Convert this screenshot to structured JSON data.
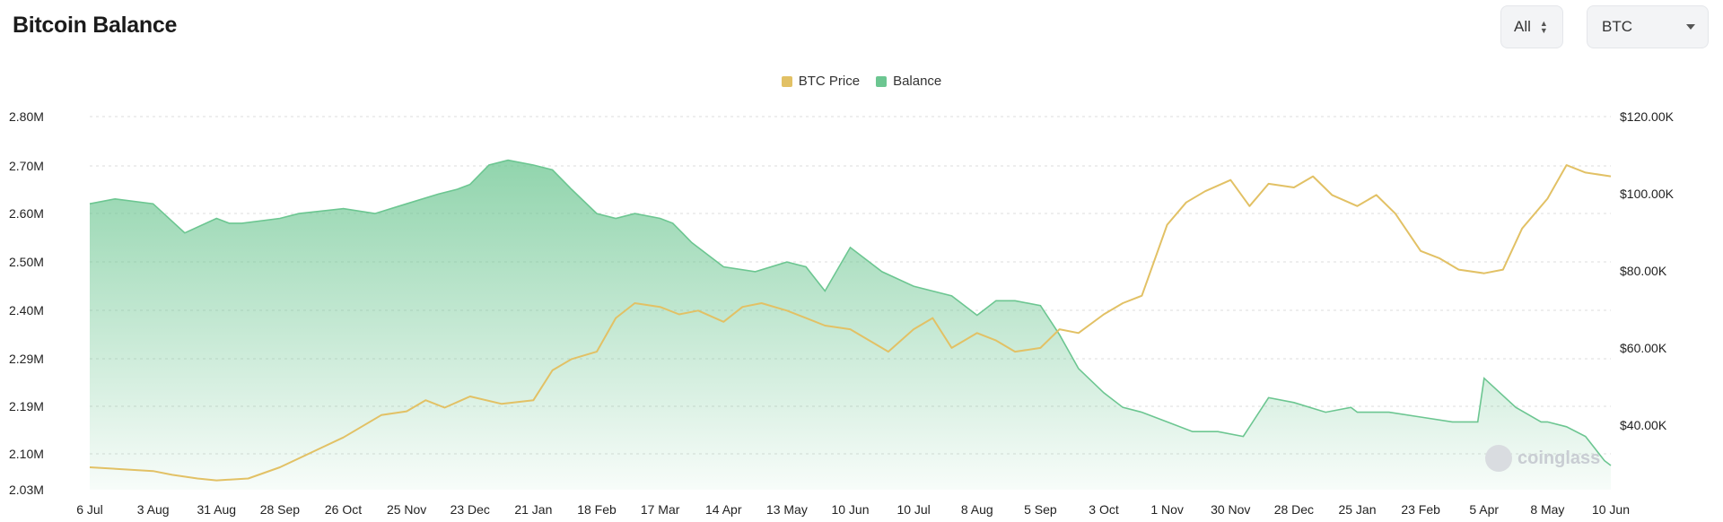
{
  "header": {
    "title": "Bitcoin Balance"
  },
  "controls": {
    "range_value": "All",
    "coin_value": "BTC"
  },
  "watermark": {
    "text": "coinglass"
  },
  "colors": {
    "price": "#e2c165",
    "balance": "#6cc691",
    "grid": "#dcdcdc"
  },
  "chart_data": {
    "type": "area",
    "legend": {
      "position": "top-center",
      "entries": [
        "BTC Price",
        "Balance"
      ]
    },
    "grid": true,
    "x_tick_labels": [
      "6 Jul",
      "3 Aug",
      "31 Aug",
      "28 Sep",
      "26 Oct",
      "25 Nov",
      "23 Dec",
      "21 Jan",
      "18 Feb",
      "17 Mar",
      "14 Apr",
      "13 May",
      "10 Jun",
      "10 Jul",
      "8 Aug",
      "5 Sep",
      "3 Oct",
      "1 Nov",
      "30 Nov",
      "28 Dec",
      "25 Jan",
      "23 Feb",
      "5 Apr",
      "8 May",
      "10 Jun"
    ],
    "y_left_ticks": [
      "2.80M",
      "2.70M",
      "2.60M",
      "2.50M",
      "2.40M",
      "2.29M",
      "2.19M",
      "2.10M",
      "2.03M"
    ],
    "y_right_ticks": [
      "$120.00K",
      "$100.00K",
      "$80.00K",
      "$60.00K",
      "$40.00K"
    ],
    "y_left_range": [
      2.03,
      2.8
    ],
    "y_right_range": [
      20,
      120
    ],
    "series": [
      {
        "name": "Balance",
        "axis": "left",
        "unit": "M BTC",
        "x": [
          0,
          0.4,
          1,
          1.5,
          2,
          2.2,
          2.4,
          3,
          3.3,
          4,
          4.5,
          5,
          5.5,
          5.8,
          6,
          6.3,
          6.6,
          7,
          7.3,
          7.6,
          8,
          8.3,
          8.6,
          9,
          9.2,
          9.5,
          10,
          10.5,
          11,
          11.3,
          11.6,
          12,
          12.5,
          13,
          13.3,
          13.6,
          14,
          14.3,
          14.6,
          15,
          15.3,
          15.6,
          16,
          16.3,
          16.6,
          17,
          17.4,
          17.8,
          18.2,
          18.6,
          19,
          19.5,
          19.9,
          20,
          20.5,
          21,
          21.5,
          21.9,
          22,
          22.5,
          22.9,
          23,
          23.3,
          23.6,
          23.9,
          24
        ],
        "values": [
          2.62,
          2.63,
          2.62,
          2.56,
          2.59,
          2.58,
          2.58,
          2.59,
          2.6,
          2.61,
          2.6,
          2.62,
          2.64,
          2.65,
          2.66,
          2.7,
          2.71,
          2.7,
          2.69,
          2.65,
          2.6,
          2.59,
          2.6,
          2.59,
          2.58,
          2.54,
          2.49,
          2.48,
          2.5,
          2.49,
          2.44,
          2.53,
          2.48,
          2.45,
          2.44,
          2.43,
          2.39,
          2.42,
          2.42,
          2.41,
          2.35,
          2.28,
          2.23,
          2.2,
          2.19,
          2.17,
          2.15,
          2.15,
          2.14,
          2.22,
          2.21,
          2.19,
          2.2,
          2.19,
          2.19,
          2.18,
          2.17,
          2.17,
          2.26,
          2.2,
          2.17,
          2.17,
          2.16,
          2.14,
          2.09,
          2.08
        ]
      },
      {
        "name": "BTC Price",
        "axis": "right",
        "unit": "$K",
        "x": [
          0,
          0.5,
          1,
          1.3,
          1.7,
          2,
          2.5,
          3,
          3.5,
          4,
          4.3,
          4.6,
          5,
          5.3,
          5.6,
          6,
          6.5,
          7,
          7.3,
          7.6,
          8,
          8.3,
          8.6,
          9,
          9.3,
          9.6,
          10,
          10.3,
          10.6,
          11,
          11.3,
          11.6,
          12,
          12.3,
          12.6,
          13,
          13.3,
          13.6,
          14,
          14.3,
          14.6,
          15,
          15.3,
          15.6,
          16,
          16.3,
          16.6,
          17,
          17.3,
          17.6,
          18,
          18.3,
          18.6,
          19,
          19.3,
          19.6,
          20,
          20.3,
          20.6,
          21,
          21.3,
          21.6,
          22,
          22.3,
          22.6,
          23,
          23.3,
          23.6,
          24
        ],
        "values": [
          26,
          25.5,
          25,
          24,
          23,
          22.5,
          23,
          26,
          30,
          34,
          37,
          40,
          41,
          44,
          42,
          45,
          43,
          44,
          52,
          55,
          57,
          66,
          70,
          69,
          67,
          68,
          65,
          69,
          70,
          68,
          66,
          64,
          63,
          60,
          57,
          63,
          66,
          58,
          62,
          60,
          57,
          58,
          63,
          62,
          67,
          70,
          72,
          91,
          97,
          100,
          103,
          96,
          102,
          101,
          104,
          99,
          96,
          99,
          94,
          84,
          82,
          79,
          78,
          79,
          90,
          98,
          107,
          105,
          104
        ]
      }
    ]
  }
}
